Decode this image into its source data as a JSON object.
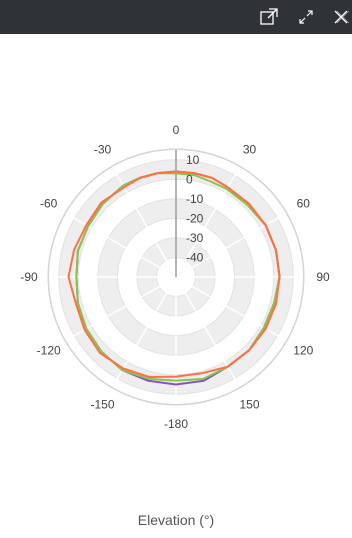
{
  "toolbar": {
    "buttons": [
      {
        "name": "popout-button",
        "icon": "external-link-icon"
      },
      {
        "name": "expand-button",
        "icon": "expand-icon"
      },
      {
        "name": "close-button",
        "icon": "close-icon"
      }
    ]
  },
  "chart_data": {
    "type": "polar-line",
    "title": "Elevation (°)",
    "angle_unit": "degrees",
    "angle_ticks": [
      0,
      30,
      60,
      90,
      120,
      150,
      -180,
      -150,
      -120,
      -90,
      -60,
      -30
    ],
    "radial_ticks": [
      10,
      0,
      -10,
      -20,
      -30,
      -40
    ],
    "rlim": [
      -50,
      15
    ],
    "grid": true,
    "series": [
      {
        "color": "#7e57c2",
        "theta": [
          -180,
          -165,
          -150,
          -135,
          -120,
          -105,
          -90,
          -75,
          -60,
          -45,
          -30,
          -20,
          -10,
          0,
          10,
          20,
          30,
          45,
          60,
          75,
          90,
          105,
          120,
          135,
          150,
          165
        ],
        "r": [
          5,
          5,
          5,
          4,
          3,
          2,
          1,
          2,
          2,
          3,
          4,
          4,
          4,
          4,
          4,
          4,
          3,
          2,
          3,
          3,
          3,
          2,
          2,
          3,
          3,
          5
        ]
      },
      {
        "color": "#8bc34a",
        "theta": [
          -180,
          -165,
          -150,
          -135,
          -120,
          -105,
          -90,
          -75,
          -60,
          -45,
          -30,
          -20,
          -10,
          0,
          10,
          20,
          30,
          45,
          60,
          75,
          90,
          105,
          120,
          135,
          150,
          165
        ],
        "r": [
          3,
          4,
          5,
          4,
          3,
          2,
          1,
          2,
          2,
          3,
          4,
          4,
          4,
          3,
          3,
          2,
          2,
          2,
          3,
          3,
          3,
          2,
          2,
          3,
          3,
          4
        ]
      },
      {
        "color": "#ff7043",
        "theta": [
          -180,
          -165,
          -150,
          -135,
          -120,
          -105,
          -90,
          -75,
          -60,
          -45,
          -30,
          -20,
          -10,
          0,
          10,
          20,
          30,
          45,
          60,
          75,
          90,
          105,
          120,
          135,
          150,
          165
        ],
        "r": [
          1,
          3,
          4,
          5,
          4,
          3,
          5,
          4,
          3,
          4,
          3,
          4,
          4,
          4,
          4,
          4,
          3,
          3,
          3,
          3,
          3,
          3,
          3,
          3,
          3,
          1
        ]
      }
    ]
  }
}
